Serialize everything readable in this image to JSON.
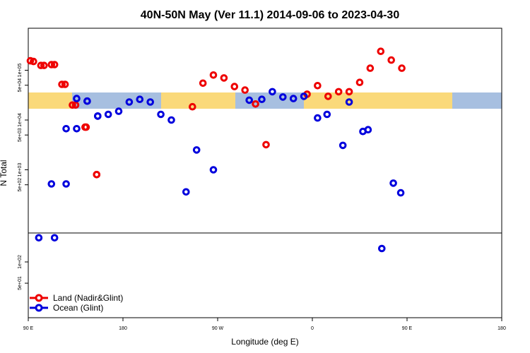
{
  "chart_data": {
    "type": "scatter",
    "title": "40N-50N May (Ver 11.1)   2014-09-06 to 2023-04-30",
    "xlabel": "Longitude (deg E)",
    "ylabel": "N Total",
    "x_tick_labels": [
      "90 E",
      "180",
      "90 W",
      "0",
      "90 E",
      "180"
    ],
    "y_tick_labels": [
      "1e+05",
      "5e+04",
      "1e+04",
      "5e+03",
      "1e+03",
      "5e+02",
      "1e+02",
      "5e+01"
    ],
    "map_band_colors": {
      "land": "#fad97a",
      "ocean": "#a7bfe0"
    },
    "legend": {
      "position": "bottom-left"
    },
    "series": [
      {
        "name": "Land (Nadir&Glint)",
        "color": "#ee0000",
        "points": [
          [
            92,
            155000
          ],
          [
            102,
            125000
          ],
          [
            112,
            130000
          ],
          [
            122,
            52000
          ],
          [
            132,
            20000
          ],
          [
            144,
            7200
          ],
          [
            155,
            800
          ],
          [
            246,
            18500
          ],
          [
            256,
            55000
          ],
          [
            266,
            80000
          ],
          [
            276,
            70000
          ],
          [
            286,
            47000
          ],
          [
            296,
            40000
          ],
          [
            306,
            21000
          ],
          [
            316,
            3200
          ],
          [
            355,
            33000
          ],
          [
            5,
            49000
          ],
          [
            15,
            30000
          ],
          [
            25,
            37000
          ],
          [
            35,
            37000
          ],
          [
            45,
            57000
          ],
          [
            55,
            110000
          ],
          [
            65,
            240000
          ],
          [
            75,
            160000
          ],
          [
            85,
            110000
          ],
          [
            95,
            150000
          ],
          [
            105,
            125000
          ],
          [
            115,
            130000
          ],
          [
            125,
            52000
          ],
          [
            135,
            20000
          ],
          [
            145,
            7200
          ],
          [
            155,
            800
          ]
        ]
      },
      {
        "name": "Ocean (Glint)",
        "color": "#0000dd",
        "points": [
          [
            100,
            220
          ],
          [
            112,
            520
          ],
          [
            126,
            6700
          ],
          [
            136,
            27000
          ],
          [
            146,
            24000
          ],
          [
            156,
            12000
          ],
          [
            166,
            13000
          ],
          [
            176,
            15000
          ],
          [
            186,
            23000
          ],
          [
            196,
            26000
          ],
          [
            206,
            23000
          ],
          [
            216,
            13000
          ],
          [
            226,
            10000
          ],
          [
            240,
            360
          ],
          [
            250,
            2500
          ],
          [
            266,
            1000
          ],
          [
            300,
            25000
          ],
          [
            312,
            26000
          ],
          [
            322,
            37000
          ],
          [
            332,
            29000
          ],
          [
            342,
            27000
          ],
          [
            352,
            30000
          ],
          [
            5,
            11000
          ],
          [
            14,
            13000
          ],
          [
            29,
            3100
          ],
          [
            35,
            23000
          ],
          [
            48,
            5900
          ],
          [
            53,
            6400
          ],
          [
            66,
            155
          ],
          [
            77,
            540
          ],
          [
            84,
            345
          ],
          [
            115,
            220
          ],
          [
            126,
            520
          ],
          [
            136,
            6700
          ],
          [
            146,
            24000
          ],
          [
            156,
            12000
          ]
        ]
      }
    ]
  }
}
